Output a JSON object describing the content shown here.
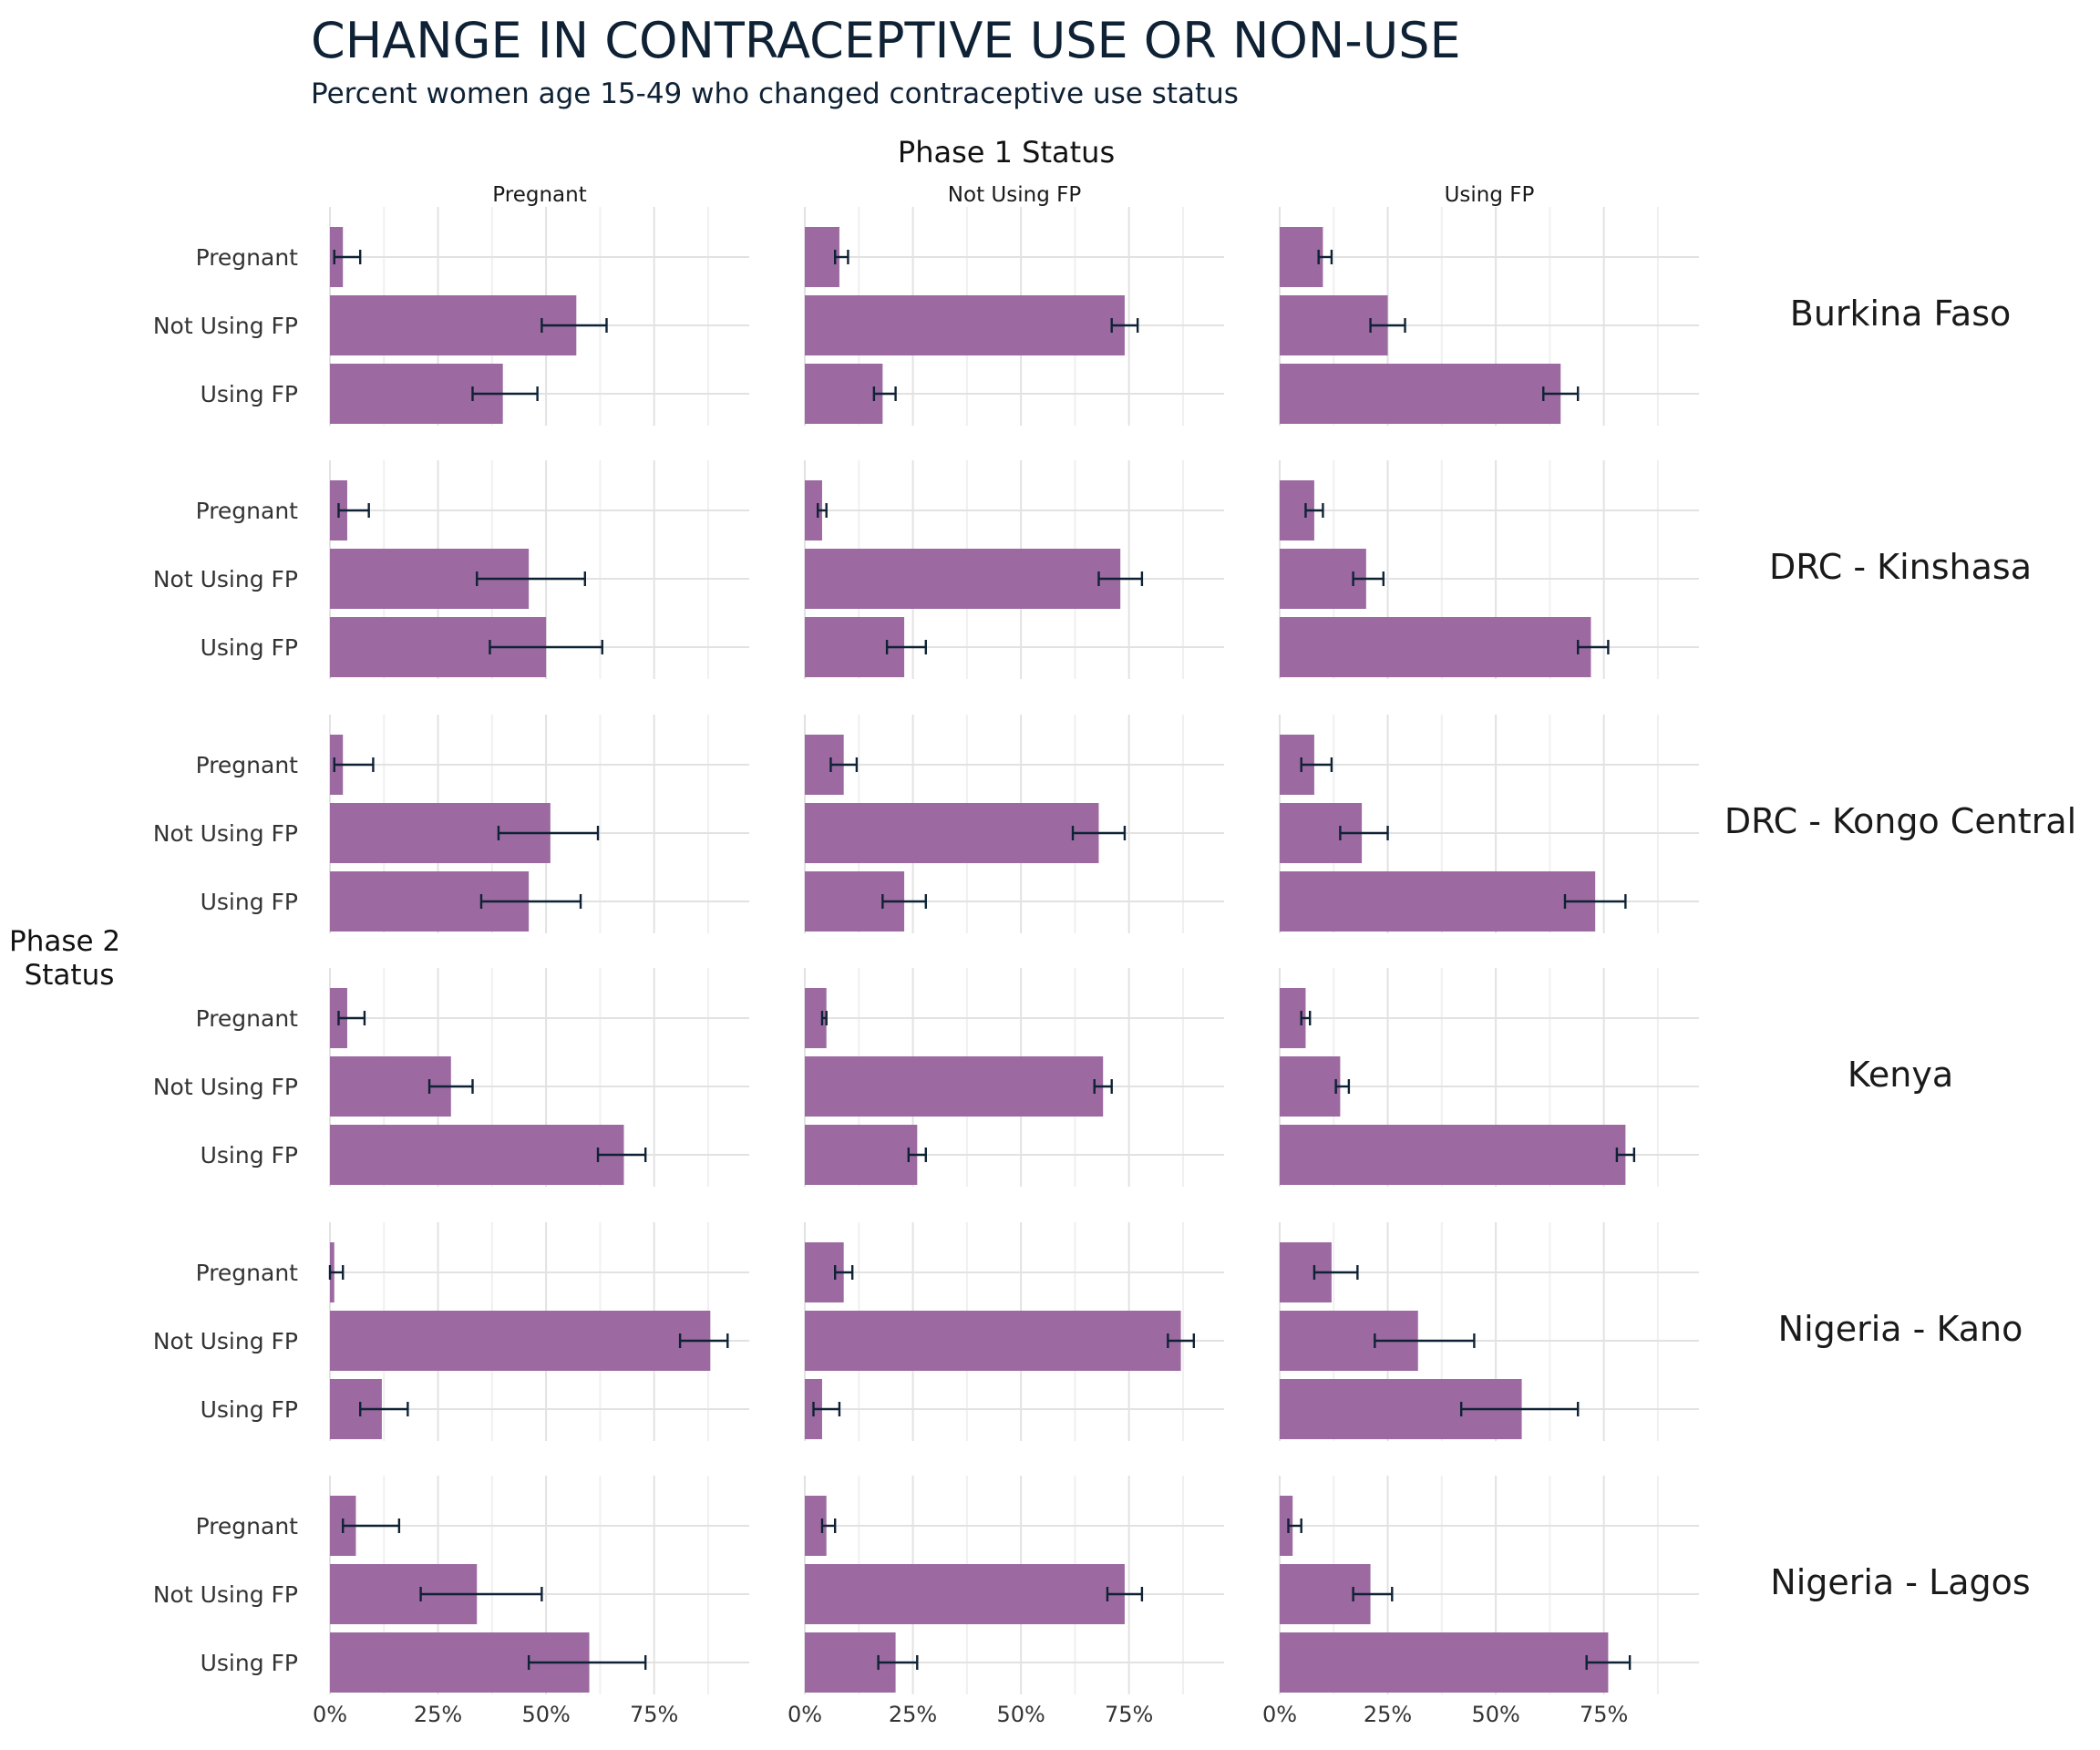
{
  "chart_data": {
    "type": "bar",
    "orientation": "horizontal",
    "title": "CHANGE IN CONTRACEPTIVE USE OR NON-USE",
    "subtitle": "Percent women age 15-49 who changed contraceptive use status",
    "column_facet_title": "Phase 1 Status",
    "row_facet_title_lines": [
      "Phase 2",
      "Status"
    ],
    "columns": [
      "Pregnant",
      "Not Using FP",
      "Using FP"
    ],
    "rows": [
      "Burkina Faso",
      "DRC - Kinshasa",
      "DRC - Kongo Central",
      "Kenya",
      "Nigeria - Kano",
      "Nigeria - Lagos"
    ],
    "categories": [
      "Pregnant",
      "Not Using FP",
      "Using FP"
    ],
    "x_ticks": [
      "0%",
      "25%",
      "50%",
      "75%"
    ],
    "xlim": [
      0,
      97
    ],
    "grid": true,
    "bar_color": "#9c6aa1",
    "error_bar_color": "#0f2235",
    "panels": [
      {
        "row": "Burkina Faso",
        "column": "Pregnant",
        "values": [
          3,
          57,
          40
        ],
        "ci_low": [
          1,
          49,
          33
        ],
        "ci_high": [
          7,
          64,
          48
        ]
      },
      {
        "row": "Burkina Faso",
        "column": "Not Using FP",
        "values": [
          8,
          74,
          18
        ],
        "ci_low": [
          7,
          71,
          16
        ],
        "ci_high": [
          10,
          77,
          21
        ]
      },
      {
        "row": "Burkina Faso",
        "column": "Using FP",
        "values": [
          10,
          25,
          65
        ],
        "ci_low": [
          9,
          21,
          61
        ],
        "ci_high": [
          12,
          29,
          69
        ]
      },
      {
        "row": "DRC - Kinshasa",
        "column": "Pregnant",
        "values": [
          4,
          46,
          50
        ],
        "ci_low": [
          2,
          34,
          37
        ],
        "ci_high": [
          9,
          59,
          63
        ]
      },
      {
        "row": "DRC - Kinshasa",
        "column": "Not Using FP",
        "values": [
          4,
          73,
          23
        ],
        "ci_low": [
          3,
          68,
          19
        ],
        "ci_high": [
          5,
          78,
          28
        ]
      },
      {
        "row": "DRC - Kinshasa",
        "column": "Using FP",
        "values": [
          8,
          20,
          72
        ],
        "ci_low": [
          6,
          17,
          69
        ],
        "ci_high": [
          10,
          24,
          76
        ]
      },
      {
        "row": "DRC - Kongo Central",
        "column": "Pregnant",
        "values": [
          3,
          51,
          46
        ],
        "ci_low": [
          1,
          39,
          35
        ],
        "ci_high": [
          10,
          62,
          58
        ]
      },
      {
        "row": "DRC - Kongo Central",
        "column": "Not Using FP",
        "values": [
          9,
          68,
          23
        ],
        "ci_low": [
          6,
          62,
          18
        ],
        "ci_high": [
          12,
          74,
          28
        ]
      },
      {
        "row": "DRC - Kongo Central",
        "column": "Using FP",
        "values": [
          8,
          19,
          73
        ],
        "ci_low": [
          5,
          14,
          66
        ],
        "ci_high": [
          12,
          25,
          80
        ]
      },
      {
        "row": "Kenya",
        "column": "Pregnant",
        "values": [
          4,
          28,
          68
        ],
        "ci_low": [
          2,
          23,
          62
        ],
        "ci_high": [
          8,
          33,
          73
        ]
      },
      {
        "row": "Kenya",
        "column": "Not Using FP",
        "values": [
          5,
          69,
          26
        ],
        "ci_low": [
          4,
          67,
          24
        ],
        "ci_high": [
          5,
          71,
          28
        ]
      },
      {
        "row": "Kenya",
        "column": "Using FP",
        "values": [
          6,
          14,
          80
        ],
        "ci_low": [
          5,
          13,
          78
        ],
        "ci_high": [
          7,
          16,
          82
        ]
      },
      {
        "row": "Nigeria - Kano",
        "column": "Pregnant",
        "values": [
          1,
          88,
          12
        ],
        "ci_low": [
          0,
          81,
          7
        ],
        "ci_high": [
          3,
          92,
          18
        ]
      },
      {
        "row": "Nigeria - Kano",
        "column": "Not Using FP",
        "values": [
          9,
          87,
          4
        ],
        "ci_low": [
          7,
          84,
          2
        ],
        "ci_high": [
          11,
          90,
          8
        ]
      },
      {
        "row": "Nigeria - Kano",
        "column": "Using FP",
        "values": [
          12,
          32,
          56
        ],
        "ci_low": [
          8,
          22,
          42
        ],
        "ci_high": [
          18,
          45,
          69
        ]
      },
      {
        "row": "Nigeria - Lagos",
        "column": "Pregnant",
        "values": [
          6,
          34,
          60
        ],
        "ci_low": [
          3,
          21,
          46
        ],
        "ci_high": [
          16,
          49,
          73
        ]
      },
      {
        "row": "Nigeria - Lagos",
        "column": "Not Using FP",
        "values": [
          5,
          74,
          21
        ],
        "ci_low": [
          4,
          70,
          17
        ],
        "ci_high": [
          7,
          78,
          26
        ]
      },
      {
        "row": "Nigeria - Lagos",
        "column": "Using FP",
        "values": [
          3,
          21,
          76
        ],
        "ci_low": [
          2,
          17,
          71
        ],
        "ci_high": [
          5,
          26,
          81
        ]
      }
    ]
  }
}
